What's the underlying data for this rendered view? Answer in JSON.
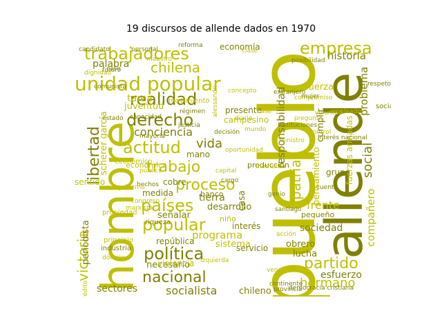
{
  "title": "19 discursos de allende dados en 1970",
  "colors": {
    "main": "#bfbf00",
    "dark": "#808000",
    "light": "#d9d94a"
  },
  "words": [
    "pueblo",
    "hombre",
    "allende",
    "unidad popular",
    "trabajadores",
    "chilena",
    "realidad",
    "derecho",
    "actitud",
    "conciencia",
    "libertad",
    "trabajo",
    "proceso",
    "países",
    "popular",
    "política",
    "nacional",
    "partido",
    "hermano",
    "socialista",
    "sectores",
    "victoria",
    "empresa",
    "historia",
    "responsabilidad",
    "patria",
    "social",
    "problema",
    "frente",
    "compañero",
    "sociedad",
    "tarea",
    "juventud",
    "vida",
    "tierra",
    "desarrollo",
    "programa",
    "sistema",
    "servicio",
    "obrero",
    "lucha",
    "esfuerzo",
    "chileno",
    "interés",
    "campesino",
    "presente",
    "producción",
    "cobre",
    "banco",
    "señalar",
    "medida",
    "república",
    "necesario",
    "violencia",
    "periodista",
    "economía",
    "palabra",
    "fuerza",
    "pensamiento",
    "cumplir",
    "grupo",
    "fuerzas armadas",
    "democracia cristiana",
    "provincia",
    "mano",
    "pequeño",
    "niño",
    "dólares",
    "casa",
    "scherer garcía",
    "sentido",
    "económica",
    "económico",
    "genio",
    "santiago",
    "riqueza",
    "principio",
    "industria",
    "socialismo",
    "hechos",
    "capital",
    "cargo",
    "diario",
    "propiedad",
    "crédito",
    "justicia",
    "compromiso",
    "movimiento",
    "capacidad",
    "estado",
    "régimen",
    "decisión",
    "mayoría",
    "personal",
    "reforma",
    "empleado",
    "oportunidad",
    "público",
    "congreso",
    "gobierno",
    "candidato",
    "comunista",
    "dignidad",
    "clase",
    "mundo",
    "maestro",
    "venerable",
    "ministro",
    "izquierda",
    "pregunta",
    "acción",
    "voluntad",
    "momento",
    "control",
    "futuro",
    "cuenta",
    "instituciones",
    "posibilidad",
    "continente",
    "caso",
    "mujer",
    "alessandri",
    "extranjero",
    "concepto",
    "interés nacional",
    "marxista",
    "base",
    "respeto"
  ]
}
